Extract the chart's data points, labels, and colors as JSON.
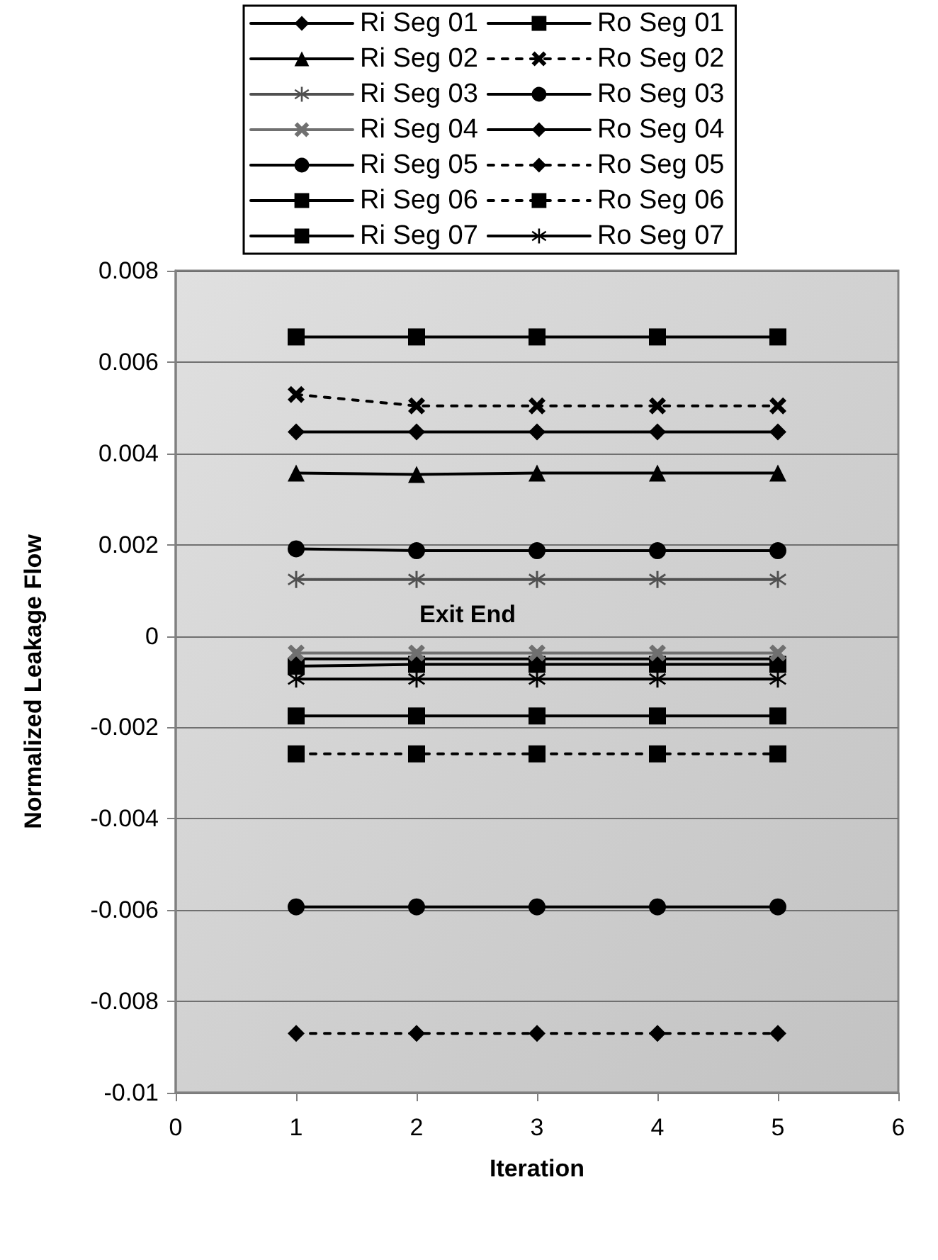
{
  "chart_data": {
    "type": "line",
    "xlabel": "Iteration",
    "ylabel": "Normalized Leakage Flow",
    "annotations": [
      "Exit End"
    ],
    "x": [
      1,
      2,
      3,
      4,
      5
    ],
    "xlim": [
      0,
      6
    ],
    "xticks": [
      0,
      1,
      2,
      3,
      4,
      5,
      6
    ],
    "ylim": [
      -0.01,
      0.008
    ],
    "yticks": [
      -0.01,
      -0.008,
      -0.006,
      -0.004,
      -0.002,
      0,
      0.002,
      0.004,
      0.006,
      0.008
    ],
    "grid": "y",
    "legend": "top",
    "series": [
      {
        "name": "Ri Seg 01",
        "color": "#000000",
        "marker": "diamond",
        "line_style": "solid",
        "values": [
          0.00447,
          0.00447,
          0.00447,
          0.00447,
          0.00447
        ]
      },
      {
        "name": "Ri Seg 02",
        "color": "#000000",
        "marker": "triangle",
        "line_style": "solid",
        "values": [
          0.00357,
          0.00354,
          0.00357,
          0.00357,
          0.00357
        ]
      },
      {
        "name": "Ri Seg 03",
        "color": "#505050",
        "marker": "star",
        "line_style": "solid",
        "values": [
          0.00124,
          0.00124,
          0.00124,
          0.00124,
          0.00124
        ]
      },
      {
        "name": "Ri Seg 04",
        "color": "#707070",
        "marker": "cross",
        "line_style": "solid",
        "values": [
          -0.00037,
          -0.00037,
          -0.00037,
          -0.00037,
          -0.00037
        ]
      },
      {
        "name": "Ri Seg 05",
        "color": "#000000",
        "marker": "circle",
        "line_style": "solid",
        "values": [
          -0.00593,
          -0.00593,
          -0.00593,
          -0.00593,
          -0.00593
        ]
      },
      {
        "name": "Ri Seg 06",
        "color": "#000000",
        "marker": "square",
        "line_style": "solid",
        "values": [
          -0.00175,
          -0.00175,
          -0.00175,
          -0.00175,
          -0.00175
        ]
      },
      {
        "name": "Ri Seg 07",
        "color": "#000000",
        "marker": "square",
        "line_style": "solid",
        "values": [
          -0.00066,
          -0.00062,
          -0.00062,
          -0.00062,
          -0.00062
        ]
      },
      {
        "name": "Ro Seg 01",
        "color": "#000000",
        "marker": "square",
        "line_style": "solid",
        "values": [
          0.00655,
          0.00655,
          0.00655,
          0.00655,
          0.00655
        ]
      },
      {
        "name": "Ro Seg 02",
        "color": "#000000",
        "marker": "cross",
        "line_style": "dashed",
        "values": [
          0.00529,
          0.00504,
          0.00504,
          0.00504,
          0.00504
        ]
      },
      {
        "name": "Ro Seg 03",
        "color": "#000000",
        "marker": "circle",
        "line_style": "solid",
        "values": [
          0.00191,
          0.00187,
          0.00187,
          0.00187,
          0.00187
        ]
      },
      {
        "name": "Ro Seg 04",
        "color": "#000000",
        "marker": "diamond",
        "line_style": "solid",
        "values": [
          -0.0005,
          -0.0005,
          -0.0005,
          -0.0005,
          -0.0005
        ]
      },
      {
        "name": "Ro Seg 05",
        "color": "#000000",
        "marker": "diamond",
        "line_style": "dashed",
        "values": [
          -0.0087,
          -0.0087,
          -0.0087,
          -0.0087,
          -0.0087
        ]
      },
      {
        "name": "Ro Seg 06",
        "color": "#000000",
        "marker": "square",
        "line_style": "dashed",
        "values": [
          -0.00258,
          -0.00258,
          -0.00258,
          -0.00258,
          -0.00258
        ]
      },
      {
        "name": "Ro Seg 07",
        "color": "#000000",
        "marker": "star",
        "line_style": "solid",
        "values": [
          -0.00094,
          -0.00094,
          -0.00094,
          -0.00094,
          -0.00094
        ]
      }
    ]
  }
}
